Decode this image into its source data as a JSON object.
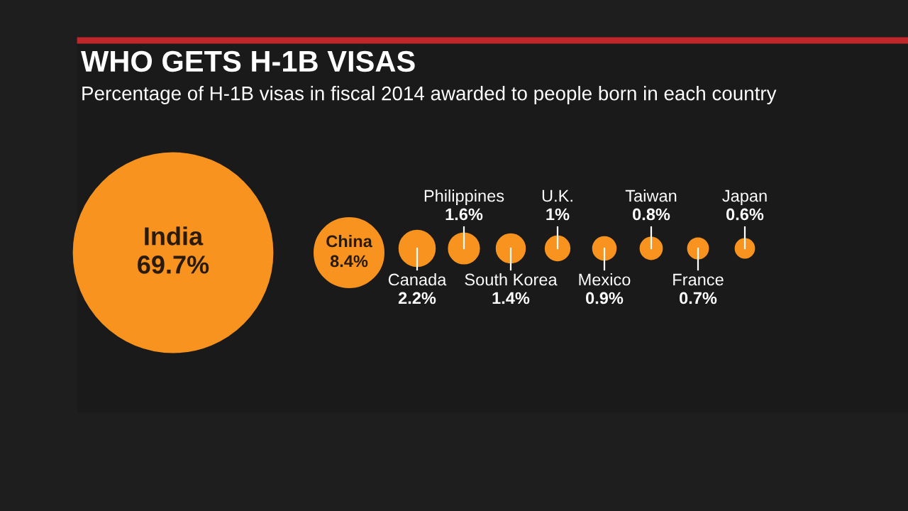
{
  "chart_data": {
    "type": "other",
    "title": "WHO GETS H-1B VISAS",
    "subtitle": "Percentage of H-1B visas in fiscal 2014 awarded to people born in each country",
    "categories": [
      "India",
      "China",
      "Canada",
      "Philippines",
      "South Korea",
      "U.K.",
      "Mexico",
      "Taiwan",
      "France",
      "Japan"
    ],
    "values": [
      69.7,
      8.4,
      2.2,
      1.6,
      1.4,
      1,
      0.9,
      0.8,
      0.7,
      0.6
    ],
    "value_labels": [
      "69.7%",
      "8.4%",
      "2.2%",
      "1.6%",
      "1.4%",
      "1%",
      "0.9%",
      "0.8%",
      "0.7%",
      "0.6%"
    ],
    "color": "#f7931e"
  }
}
